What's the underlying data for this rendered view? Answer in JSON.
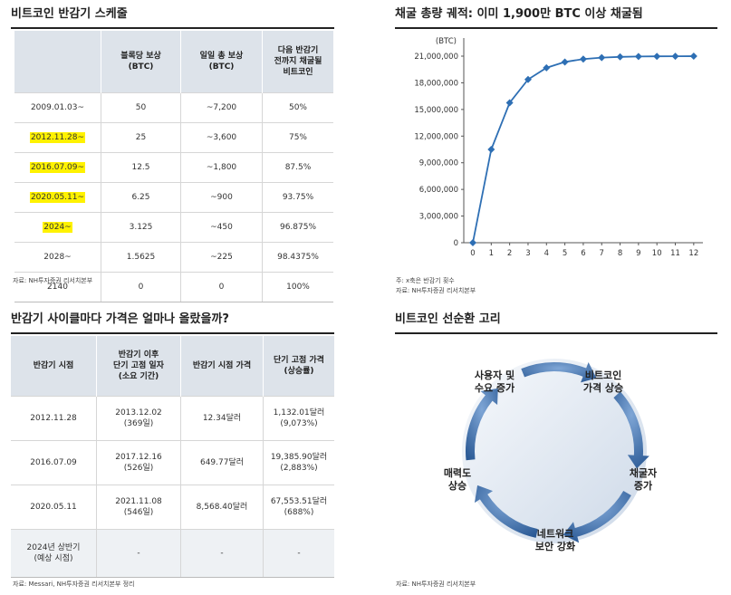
{
  "halving_schedule": {
    "title": "비트코인 반감기 스케줄",
    "headers": [
      "",
      "블록당 보상\n(BTC)",
      "일일 총 보상\n(BTC)",
      "다음 반감기\n전까지 채굴될\n비트코인"
    ],
    "rows": [
      {
        "period": "2009.01.03~",
        "block_reward": "50",
        "daily_reward": "~7,200",
        "mined": "50%",
        "highlight": false
      },
      {
        "period": "2012.11.28~",
        "block_reward": "25",
        "daily_reward": "~3,600",
        "mined": "75%",
        "highlight": true
      },
      {
        "period": "2016.07.09~",
        "block_reward": "12.5",
        "daily_reward": "~1,800",
        "mined": "87.5%",
        "highlight": true
      },
      {
        "period": "2020.05.11~",
        "block_reward": "6.25",
        "daily_reward": "~900",
        "mined": "93.75%",
        "highlight": true
      },
      {
        "period": "2024~",
        "block_reward": "3.125",
        "daily_reward": "~450",
        "mined": "96.875%",
        "highlight": true
      },
      {
        "period": "2028~",
        "block_reward": "1.5625",
        "daily_reward": "~225",
        "mined": "98.4375%",
        "highlight": false
      },
      {
        "period": "2140",
        "block_reward": "0",
        "daily_reward": "0",
        "mined": "100%",
        "highlight": false
      }
    ],
    "source": "자료: NH투자증권 리서치본부"
  },
  "price_table": {
    "title": "반감기 사이클마다 가격은 얼마나 올랐을까?",
    "headers": [
      "반감기 시점",
      "반감기 이후\n단기 고점 일자\n(소요 기간)",
      "반감기 시점 가격",
      "단기 고점 가격\n(상승률)"
    ],
    "rows": [
      {
        "date": "2012.11.28",
        "peak_date": "2013.12.02",
        "duration": "(369일)",
        "price": "12.34달러",
        "peak_price": "1,132.01달러",
        "gain": "(9,073%)"
      },
      {
        "date": "2016.07.09",
        "peak_date": "2017.12.16",
        "duration": "(526일)",
        "price": "649.77달러",
        "peak_price": "19,385.90달러",
        "gain": "(2,883%)"
      },
      {
        "date": "2020.05.11",
        "peak_date": "2021.11.08",
        "duration": "(546일)",
        "price": "8,568.40달러",
        "peak_price": "67,553.51달러",
        "gain": "(688%)"
      },
      {
        "date": "2024년 상반기\n(예상 시점)",
        "peak_date": "-",
        "duration": "",
        "price": "-",
        "peak_price": "-",
        "gain": ""
      }
    ],
    "source": "자료: Messari, NH투자증권 리서치본부 정리"
  },
  "supply_chart": {
    "title": "채굴 총량 궤적: 이미 1,900만 BTC 이상 채굴됨",
    "note": "주: x축은 반감기 횟수",
    "source": "자료: NH투자증권 리서치본부"
  },
  "chart_data": {
    "type": "line",
    "title": "채굴 총량 궤적: 이미 1,900만 BTC 이상 채굴됨",
    "xlabel": "",
    "ylabel": "(BTC)",
    "x": [
      0,
      1,
      2,
      3,
      4,
      5,
      6,
      7,
      8,
      9,
      10,
      11,
      12
    ],
    "values": [
      0,
      10500000,
      15750000,
      18375000,
      19687500,
      20343750,
      20671875,
      20835938,
      20917969,
      20958984,
      20979492,
      20989746,
      20994873
    ],
    "ylim": [
      0,
      21000000
    ],
    "yticks": [
      0,
      3000000,
      6000000,
      9000000,
      12000000,
      15000000,
      18000000,
      21000000
    ],
    "ytick_labels": [
      "0",
      "3,000,000",
      "6,000,000",
      "9,000,000",
      "12,000,000",
      "15,000,000",
      "18,000,000",
      "21,000,000"
    ],
    "xticks": [
      "0",
      "1",
      "2",
      "3",
      "4",
      "5",
      "6",
      "7",
      "8",
      "9",
      "10",
      "11",
      "12"
    ],
    "grid": false,
    "line_color": "#2e6fb4"
  },
  "cycle": {
    "title": "비트코인 선순환 고리",
    "steps": [
      "비트코인\n가격 상승",
      "채굴자\n증가",
      "네트워크\n보안 강화",
      "매력도\n상승",
      "사용자 및\n수요 증가"
    ],
    "arrow_color": "#2f5f9e",
    "source": "자료: NH투자증권 리서치본부"
  }
}
